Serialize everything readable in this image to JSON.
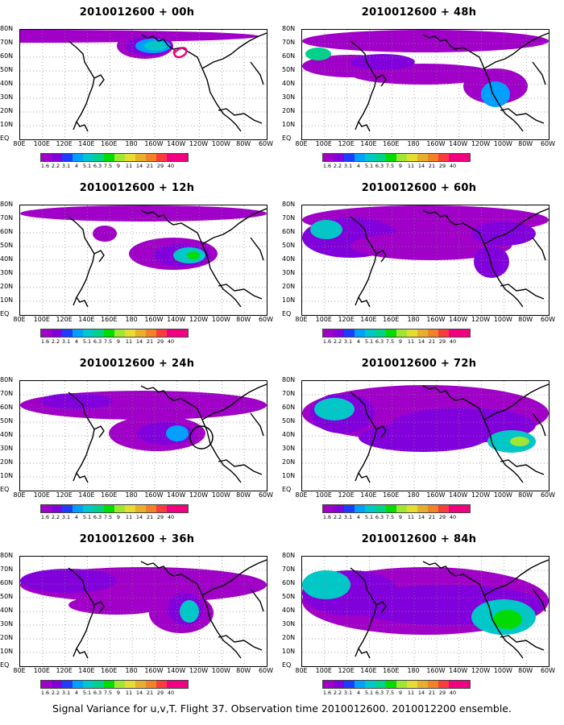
{
  "panels": [
    {
      "title": "2010012600 + 00h",
      "marker": "ring"
    },
    {
      "title": "2010012600 + 48h"
    },
    {
      "title": "2010012600 + 12h"
    },
    {
      "title": "2010012600 + 60h"
    },
    {
      "title": "2010012600 + 24h",
      "marker": "circle"
    },
    {
      "title": "2010012600 + 72h"
    },
    {
      "title": "2010012600 + 36h"
    },
    {
      "title": "2010012600 + 84h"
    }
  ],
  "lat_labels": [
    "80N",
    "70N",
    "60N",
    "50N",
    "40N",
    "30N",
    "20N",
    "10N",
    "EQ"
  ],
  "lon_labels": [
    "80E",
    "100E",
    "120E",
    "140E",
    "160E",
    "180",
    "160W",
    "140W",
    "120W",
    "100W",
    "80W",
    "60W"
  ],
  "colorbar": {
    "labels": [
      "1.6",
      "2.2",
      "3.1",
      "4",
      "5.1",
      "6.3",
      "7.5",
      "9",
      "11",
      "14",
      "21",
      "29",
      "40"
    ],
    "colors": [
      "#a000c8",
      "#8200dc",
      "#1e3cff",
      "#00a0ff",
      "#00c8c8",
      "#00d28c",
      "#00dc00",
      "#a0e632",
      "#e6dc32",
      "#e6af2d",
      "#f08228",
      "#fa3c3c",
      "#f00082"
    ]
  },
  "footer": "Signal Variance for u,v,T. Flight 37. Observation time 2010012600. 2010012200 ensemble."
}
